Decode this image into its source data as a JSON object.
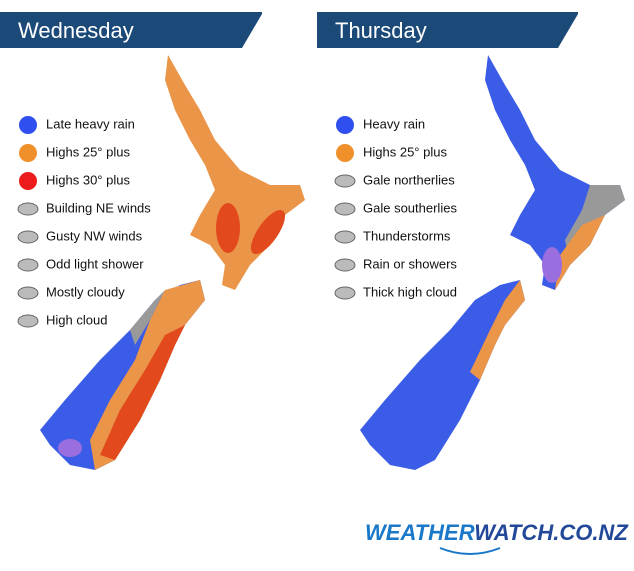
{
  "panels": [
    {
      "title": "Wednesday",
      "legend": [
        "Late heavy rain",
        "Highs 25° plus",
        "Highs 30° plus",
        "Building NE winds",
        "Gusty NW winds",
        "Odd light shower",
        "Mostly cloudy",
        "High cloud"
      ]
    },
    {
      "title": "Thursday",
      "legend": [
        "Heavy rain",
        "Highs 25° plus",
        "Gale northerlies",
        "Gale southerlies",
        "Thunderstorms",
        "Rain or showers",
        "Thick high cloud"
      ]
    }
  ],
  "logo": {
    "part1": "WEATHER",
    "part2": "WATCH.CO.NZ"
  }
}
